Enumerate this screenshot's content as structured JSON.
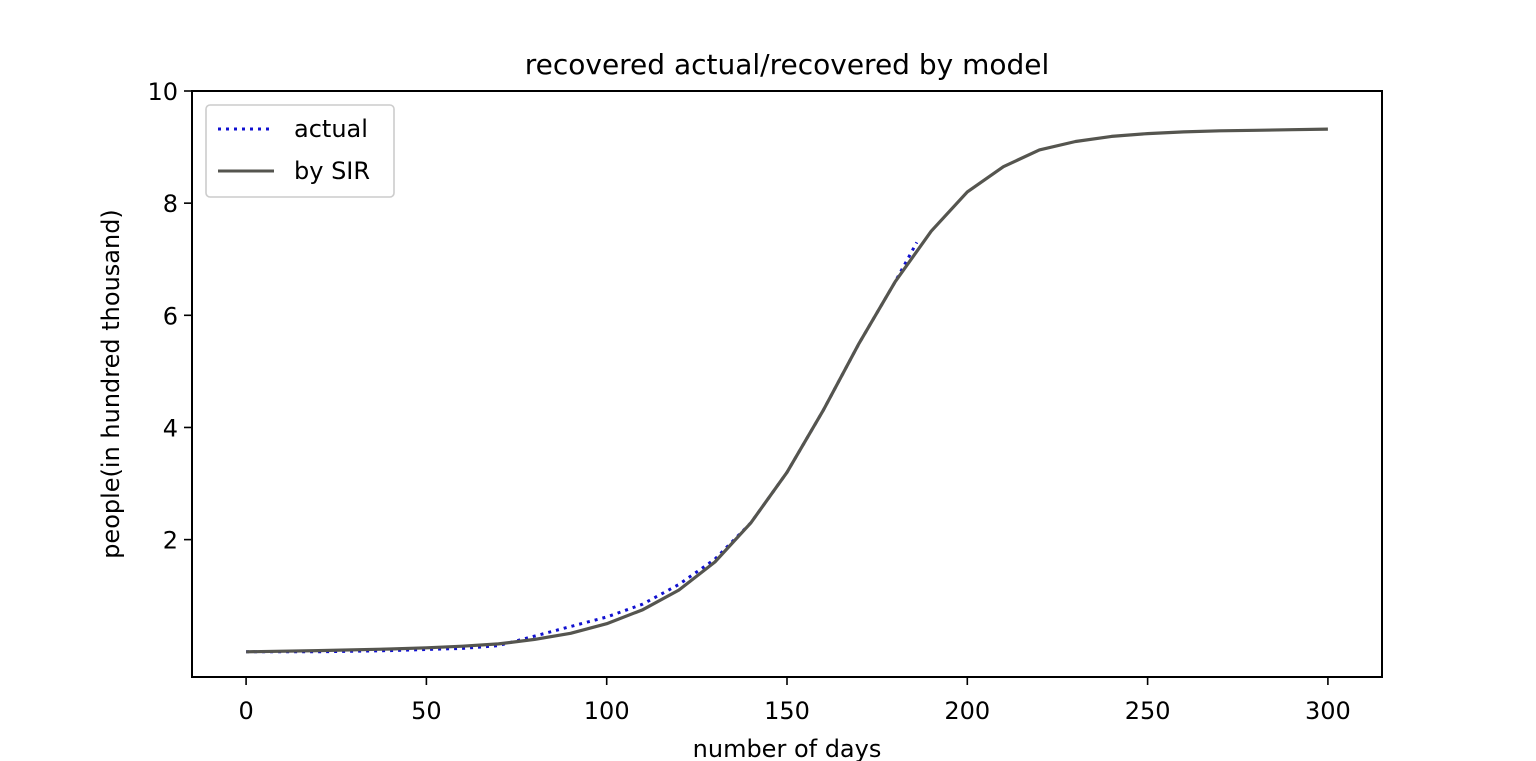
{
  "chart_data": {
    "type": "line",
    "title": "recovered actual/recovered by model",
    "xlabel": "number of days",
    "ylabel": "people(in hundred thousand)",
    "xlim": [
      -15,
      315
    ],
    "ylim": [
      -0.45,
      10
    ],
    "xticks": [
      0,
      50,
      100,
      150,
      200,
      250,
      300
    ],
    "yticks": [
      2,
      4,
      6,
      8,
      10
    ],
    "xtick_labels": [
      "0",
      "50",
      "100",
      "150",
      "200",
      "250",
      "300"
    ],
    "ytick_labels": [
      "2",
      "4",
      "6",
      "8",
      "10"
    ],
    "grid": false,
    "legend_position": "top-left",
    "series": [
      {
        "name": "actual",
        "style": "dotted",
        "color": "#1010d0",
        "x": [
          0,
          20,
          40,
          60,
          70,
          80,
          90,
          100,
          110,
          120,
          130,
          140,
          150,
          160,
          170,
          180,
          186
        ],
        "y": [
          0.0,
          0.0,
          0.02,
          0.06,
          0.11,
          0.28,
          0.45,
          0.62,
          0.85,
          1.2,
          1.65,
          2.3,
          3.2,
          4.3,
          5.5,
          6.6,
          7.3
        ]
      },
      {
        "name": "by SIR",
        "style": "solid",
        "color": "#55554f",
        "x": [
          0,
          20,
          40,
          50,
          60,
          70,
          80,
          90,
          100,
          110,
          120,
          130,
          140,
          150,
          160,
          170,
          180,
          190,
          200,
          210,
          220,
          230,
          240,
          250,
          260,
          270,
          280,
          290,
          300
        ],
        "y": [
          0.0,
          0.02,
          0.05,
          0.07,
          0.1,
          0.14,
          0.22,
          0.33,
          0.5,
          0.75,
          1.1,
          1.6,
          2.3,
          3.2,
          4.3,
          5.5,
          6.6,
          7.5,
          8.2,
          8.65,
          8.95,
          9.1,
          9.19,
          9.24,
          9.27,
          9.29,
          9.3,
          9.31,
          9.32
        ]
      }
    ]
  }
}
